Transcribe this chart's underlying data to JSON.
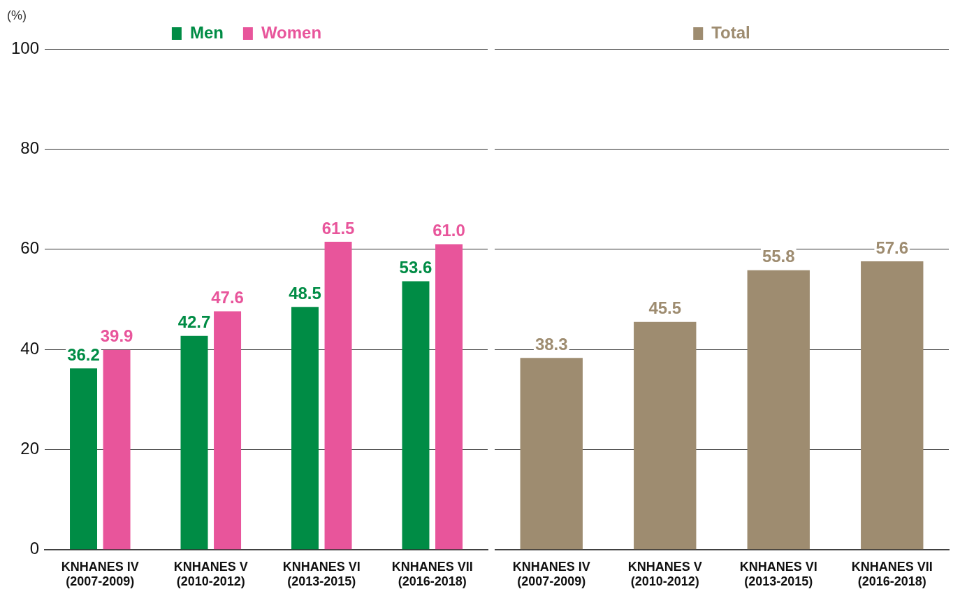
{
  "chart_data": [
    {
      "type": "bar",
      "ylabel": "(%)",
      "categories": [
        "KNHANES IV (2007-2009)",
        "KNHANES V (2010-2012)",
        "KNHANES VI (2013-2015)",
        "KNHANES VII (2016-2018)"
      ],
      "series": [
        {
          "name": "Men",
          "color": "#008c45",
          "values": [
            36.2,
            42.7,
            48.5,
            53.6
          ],
          "value_labels": [
            "36.2",
            "42.7",
            "48.5",
            "53.6"
          ]
        },
        {
          "name": "Women",
          "color": "#e8559b",
          "values": [
            39.9,
            47.6,
            61.5,
            61.0
          ],
          "value_labels": [
            "39.9",
            "47.6",
            "61.5",
            "61.0"
          ]
        }
      ],
      "ylim": [
        0,
        100
      ],
      "yticks": [
        0,
        20,
        40,
        60,
        80,
        100
      ],
      "grid": "y",
      "legend": "top"
    },
    {
      "type": "bar",
      "categories": [
        "KNHANES IV (2007-2009)",
        "KNHANES V (2010-2012)",
        "KNHANES VI (2013-2015)",
        "KNHANES VII (2016-2018)"
      ],
      "series": [
        {
          "name": "Total",
          "color": "#9e8c70",
          "values": [
            38.3,
            45.5,
            55.8,
            57.6
          ],
          "value_labels": [
            "38.3",
            "45.5",
            "55.8",
            "57.6"
          ]
        }
      ],
      "ylim": [
        0,
        100
      ],
      "yticks": [
        0,
        20,
        40,
        60,
        80,
        100
      ],
      "grid": "y",
      "legend": "top",
      "tick_labels": "x"
    }
  ]
}
